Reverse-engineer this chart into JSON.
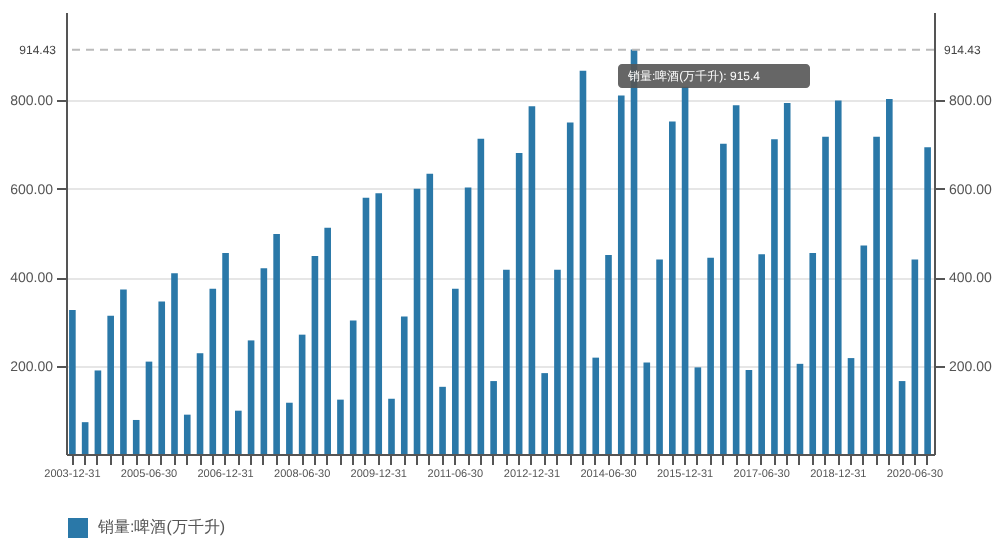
{
  "chart_data": {
    "type": "bar",
    "categories": [
      "2003-12-31",
      null,
      null,
      null,
      null,
      null,
      "2005-06-30",
      null,
      null,
      null,
      null,
      null,
      "2006-12-31",
      null,
      null,
      null,
      null,
      null,
      "2008-06-30",
      null,
      null,
      null,
      null,
      null,
      "2009-12-31",
      null,
      null,
      null,
      null,
      null,
      "2011-06-30",
      null,
      null,
      null,
      null,
      null,
      "2012-12-31",
      null,
      null,
      null,
      null,
      null,
      "2014-06-30",
      null,
      null,
      null,
      null,
      null,
      "2015-12-31",
      null,
      null,
      null,
      null,
      null,
      "2017-06-30",
      null,
      null,
      null,
      null,
      null,
      "2018-12-31",
      null,
      null,
      null,
      null,
      null,
      "2020-06-30",
      null
    ],
    "series": [
      {
        "name": "销量:啤酒(万千升)",
        "color": "#2a78a8",
        "values": [
          326,
          72,
          189,
          313,
          372,
          77,
          209,
          345,
          409,
          89,
          228,
          374,
          455,
          98,
          257,
          420,
          498,
          116,
          270,
          448,
          512,
          123,
          302,
          580,
          590,
          125,
          311,
          600,
          634,
          152,
          374,
          603,
          713,
          165,
          417,
          681,
          787,
          183,
          417,
          750,
          867,
          218,
          450,
          811,
          915.4,
          207,
          440,
          752,
          831,
          196,
          444,
          702,
          789,
          190,
          452,
          712,
          794,
          204,
          455,
          718,
          800,
          217,
          472,
          718,
          803,
          165,
          440,
          694
        ]
      }
    ],
    "ylim": [
      0,
      1000
    ],
    "yticks": [
      {
        "value": 200,
        "label": "200.00"
      },
      {
        "value": 400,
        "label": "400.00"
      },
      {
        "value": 600,
        "label": "600.00"
      },
      {
        "value": 800,
        "label": "800.00"
      }
    ],
    "y2lim": [
      0,
      1000
    ],
    "y2ticks": [
      {
        "value": 200,
        "label": "200.00"
      },
      {
        "value": 400,
        "label": "400.00"
      },
      {
        "value": 600,
        "label": "600.00"
      },
      {
        "value": 800,
        "label": "800.00"
      }
    ],
    "ref_lines": [
      {
        "axis": "y2",
        "value": 914.43,
        "label": "914.43",
        "line_style": "dashed",
        "color": "#bbbbbb"
      }
    ],
    "annotations": [
      "销量:啤酒(万千升): 915.4"
    ],
    "grid": "y",
    "legend": "bottom"
  }
}
